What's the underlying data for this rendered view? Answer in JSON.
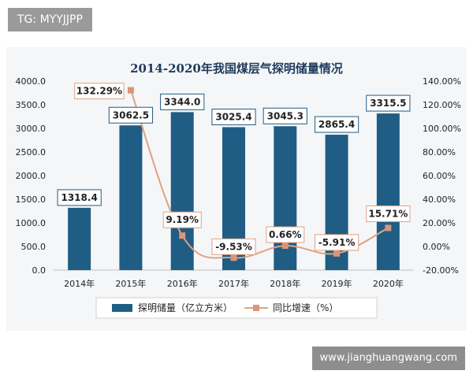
{
  "header_tag": "TG: MYYJJPP",
  "watermark": "www.jianghuangwang.com",
  "chart_data": {
    "type": "bar",
    "title": "2014-2020年我国煤层气探明储量情况",
    "categories": [
      "2014年",
      "2015年",
      "2016年",
      "2017年",
      "2018年",
      "2019年",
      "2020年"
    ],
    "series": [
      {
        "name": "探明储量（亿立方米）",
        "type": "bar",
        "axis": "left",
        "values": [
          1318.4,
          3062.5,
          3344.0,
          3025.4,
          3045.3,
          2865.4,
          3315.5
        ],
        "labels": [
          "1318.4",
          "3062.5",
          "3344.0",
          "3025.4",
          "3045.3",
          "2865.4",
          "3315.5"
        ]
      },
      {
        "name": "同比增速（%）",
        "type": "line",
        "axis": "right",
        "values": [
          null,
          132.29,
          9.19,
          -9.53,
          0.66,
          -5.91,
          15.71
        ],
        "labels": [
          "",
          "132.29%",
          "9.19%",
          "-9.53%",
          "0.66%",
          "-5.91%",
          "15.71%"
        ]
      }
    ],
    "y_left": {
      "ylim": [
        0,
        4000
      ],
      "ticks": [
        "0.0",
        "500.0",
        "1000.0",
        "1500.0",
        "2000.0",
        "2500.0",
        "3000.0",
        "3500.0",
        "4000.0"
      ]
    },
    "y_right": {
      "ylim": [
        -20,
        140
      ],
      "ticks": [
        "-20.00%",
        "0.00%",
        "20.00%",
        "40.00%",
        "60.00%",
        "80.00%",
        "100.00%",
        "120.00%",
        "140.00%"
      ]
    },
    "grid": false,
    "legend": "bottom",
    "colors": {
      "bar": "#1f5d85",
      "line": "#e0a282",
      "marker": "#d9957a"
    }
  }
}
